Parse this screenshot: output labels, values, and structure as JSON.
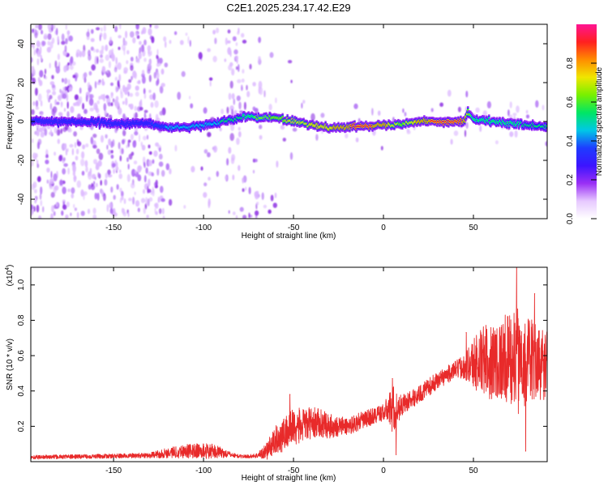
{
  "title": "C2E1.2025.234.17.42.E29",
  "chart_data": [
    {
      "type": "heatmap",
      "name": "spectrogram",
      "xlabel": "Height of straight line (km)",
      "ylabel": "Frequency (Hz)",
      "xlim": [
        -196,
        91
      ],
      "ylim": [
        -50,
        50
      ],
      "xticks": [
        -150,
        -100,
        -50,
        0,
        50
      ],
      "xtick_labels": [
        "-150",
        "-100",
        "-50",
        "0",
        "50"
      ],
      "yticks": [
        -40,
        -20,
        0,
        20,
        40
      ],
      "ytick_labels": [
        "-40",
        "-20",
        "0",
        "20",
        "40"
      ],
      "colorbar": {
        "label": "Normalized spectral amplitude",
        "range": [
          0,
          1
        ],
        "ticks": [
          0.0,
          0.2,
          0.4,
          0.6,
          0.8
        ],
        "tick_labels": [
          "0.0",
          "0.2",
          "0.4",
          "0.6",
          "0.8"
        ],
        "colormap": [
          "#ffffff",
          "#e6c8ff",
          "#9a2ff5",
          "#3c14ff",
          "#1e3cff",
          "#00c8e6",
          "#00e664",
          "#78f000",
          "#f0e600",
          "#ff8c00",
          "#ff2020",
          "#ff1493"
        ]
      },
      "ridge": {
        "x": [
          -196,
          -170,
          -150,
          -130,
          -122,
          -110,
          -100,
          -90,
          -80,
          -75,
          -70,
          -60,
          -50,
          -40,
          -30,
          -20,
          -10,
          0,
          10,
          20,
          30,
          40,
          45,
          47,
          50,
          60,
          70,
          80,
          91
        ],
        "freq": [
          0,
          0,
          -1,
          -1,
          -3,
          -3,
          -2,
          0,
          2,
          3,
          2,
          2,
          0,
          -2,
          -3,
          -3,
          -2,
          -2,
          -1,
          0,
          0,
          0,
          0,
          5,
          1,
          0,
          -1,
          -2,
          -3
        ],
        "peak_amplitude": [
          0.3,
          0.3,
          0.35,
          0.35,
          0.45,
          0.5,
          0.5,
          0.55,
          0.55,
          0.6,
          0.65,
          0.7,
          0.75,
          0.8,
          0.8,
          0.9,
          0.95,
          0.85,
          0.7,
          0.85,
          0.95,
          0.95,
          0.9,
          0.7,
          0.6,
          0.6,
          0.6,
          0.55,
          0.55
        ]
      }
    },
    {
      "type": "line",
      "name": "snr",
      "xlabel": "Height of straight line (km)",
      "ylabel": "SNR (10 * v/v)",
      "y_multiplier_label": "(x10",
      "y_multiplier_exp": "4",
      "y_multiplier_close": ")",
      "xlim": [
        -196,
        91
      ],
      "ylim": [
        0,
        1.1
      ],
      "xticks": [
        -150,
        -100,
        -50,
        0,
        50
      ],
      "xtick_labels": [
        "-150",
        "-100",
        "-50",
        "0",
        "50"
      ],
      "yticks": [
        0.2,
        0.4,
        0.6,
        0.8,
        1.0
      ],
      "ytick_labels": [
        "0.2",
        "0.4",
        "0.6",
        "0.8",
        "1.0"
      ],
      "color": "#e82a2a",
      "envelope": {
        "x": [
          -196,
          -160,
          -130,
          -120,
          -110,
          -100,
          -95,
          -90,
          -85,
          -80,
          -75,
          -70,
          -65,
          -60,
          -55,
          -50,
          -45,
          -40,
          -35,
          -30,
          -25,
          -20,
          -15,
          -10,
          -5,
          0,
          3,
          5,
          8,
          10,
          15,
          20,
          25,
          30,
          35,
          40,
          45,
          50,
          55,
          60,
          65,
          70,
          75,
          80,
          85,
          91
        ],
        "mean": [
          0.025,
          0.03,
          0.035,
          0.05,
          0.06,
          0.06,
          0.06,
          0.05,
          0.04,
          0.03,
          0.03,
          0.035,
          0.06,
          0.12,
          0.16,
          0.2,
          0.2,
          0.22,
          0.22,
          0.2,
          0.2,
          0.2,
          0.22,
          0.24,
          0.26,
          0.28,
          0.3,
          0.3,
          0.3,
          0.32,
          0.35,
          0.38,
          0.42,
          0.46,
          0.49,
          0.52,
          0.54,
          0.56,
          0.57,
          0.57,
          0.58,
          0.58,
          0.57,
          0.57,
          0.56,
          0.55
        ],
        "noise": [
          0.012,
          0.012,
          0.015,
          0.03,
          0.04,
          0.045,
          0.04,
          0.03,
          0.015,
          0.01,
          0.01,
          0.015,
          0.05,
          0.08,
          0.1,
          0.11,
          0.1,
          0.09,
          0.08,
          0.07,
          0.06,
          0.05,
          0.05,
          0.05,
          0.05,
          0.05,
          0.08,
          0.15,
          0.09,
          0.06,
          0.05,
          0.05,
          0.05,
          0.05,
          0.05,
          0.05,
          0.07,
          0.15,
          0.2,
          0.22,
          0.24,
          0.26,
          0.3,
          0.26,
          0.22,
          0.2
        ]
      },
      "peaks": [
        {
          "x": -52,
          "y": 0.38
        },
        {
          "x": 5,
          "y": 0.47
        },
        {
          "x": 7,
          "y": 0.04
        },
        {
          "x": 46,
          "y": 0.73
        },
        {
          "x": 74,
          "y": 1.12
        },
        {
          "x": 79,
          "y": 0.06
        },
        {
          "x": 84,
          "y": 0.95
        }
      ]
    }
  ]
}
